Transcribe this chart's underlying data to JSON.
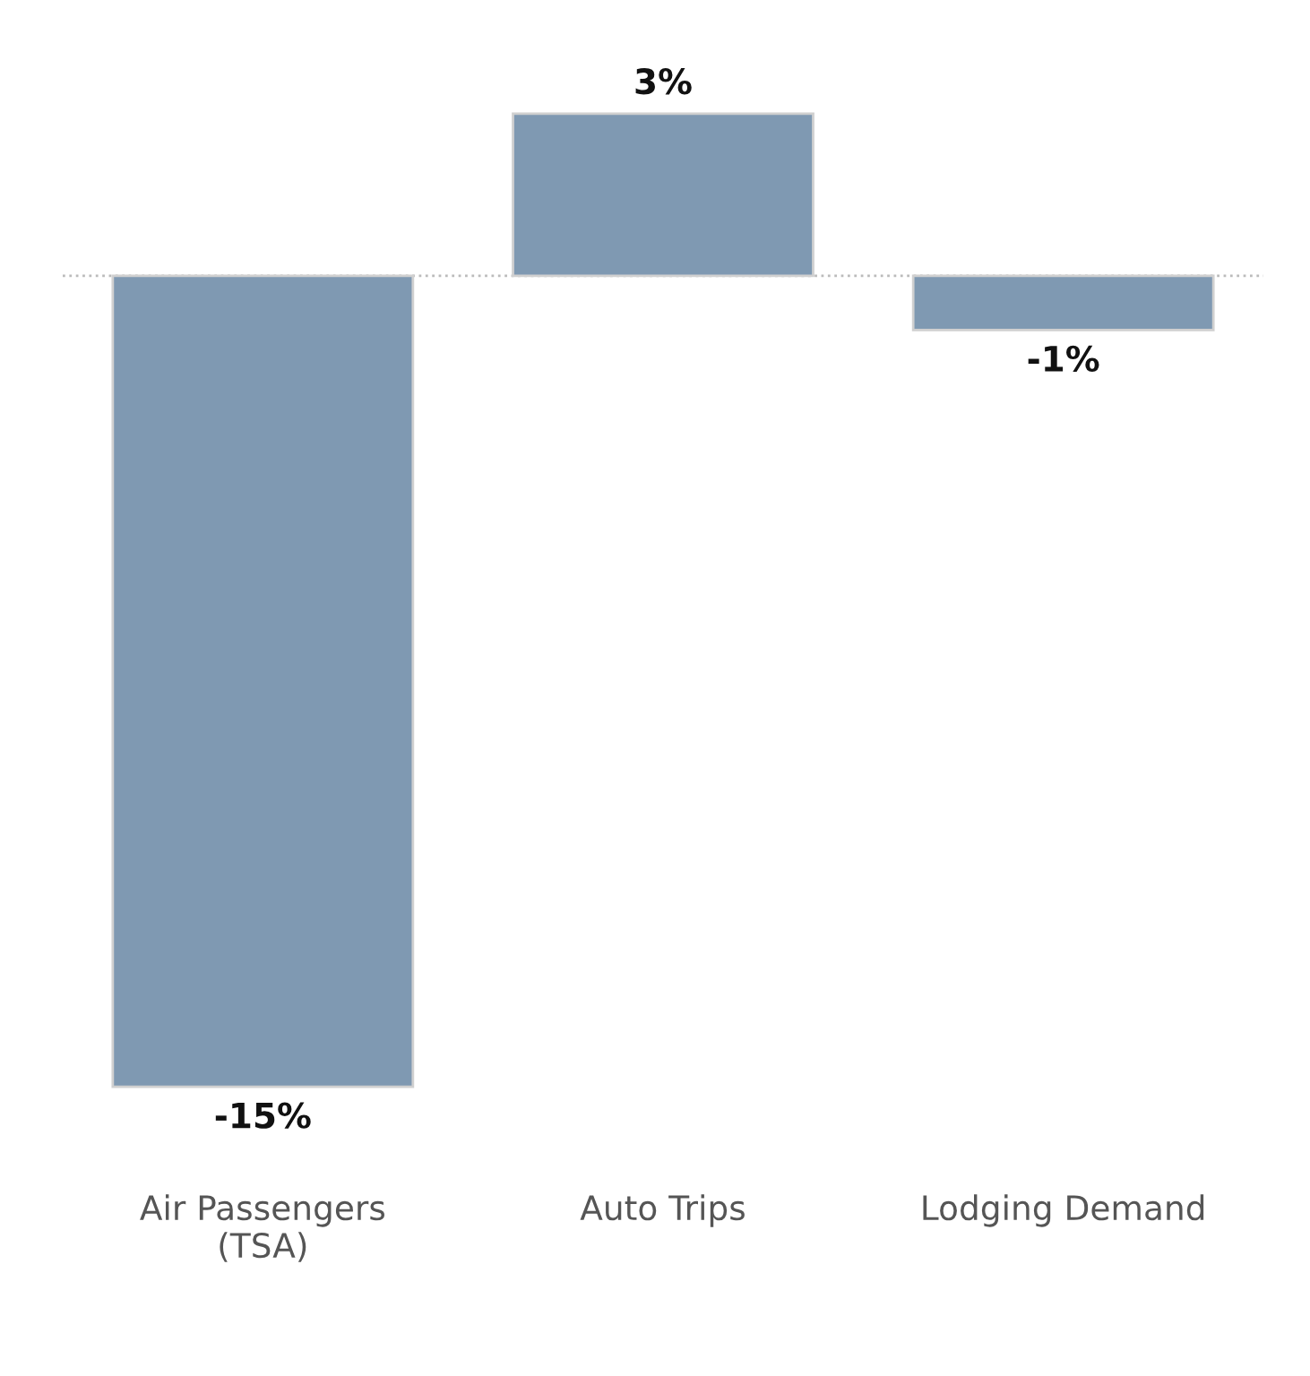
{
  "chart_data": {
    "type": "bar",
    "categories": [
      "Air Passengers\n(TSA)",
      "Auto Trips",
      "Lodging Demand"
    ],
    "values": [
      -15,
      3,
      -1
    ],
    "value_labels": [
      "-15%",
      "3%",
      "-1%"
    ],
    "color": "#7f99b2",
    "ref_lines": [
      {
        "axis": "y",
        "value": 0,
        "color": "#bbbbbb",
        "line_style": "dotted"
      }
    ],
    "grid": false,
    "legend": false
  }
}
